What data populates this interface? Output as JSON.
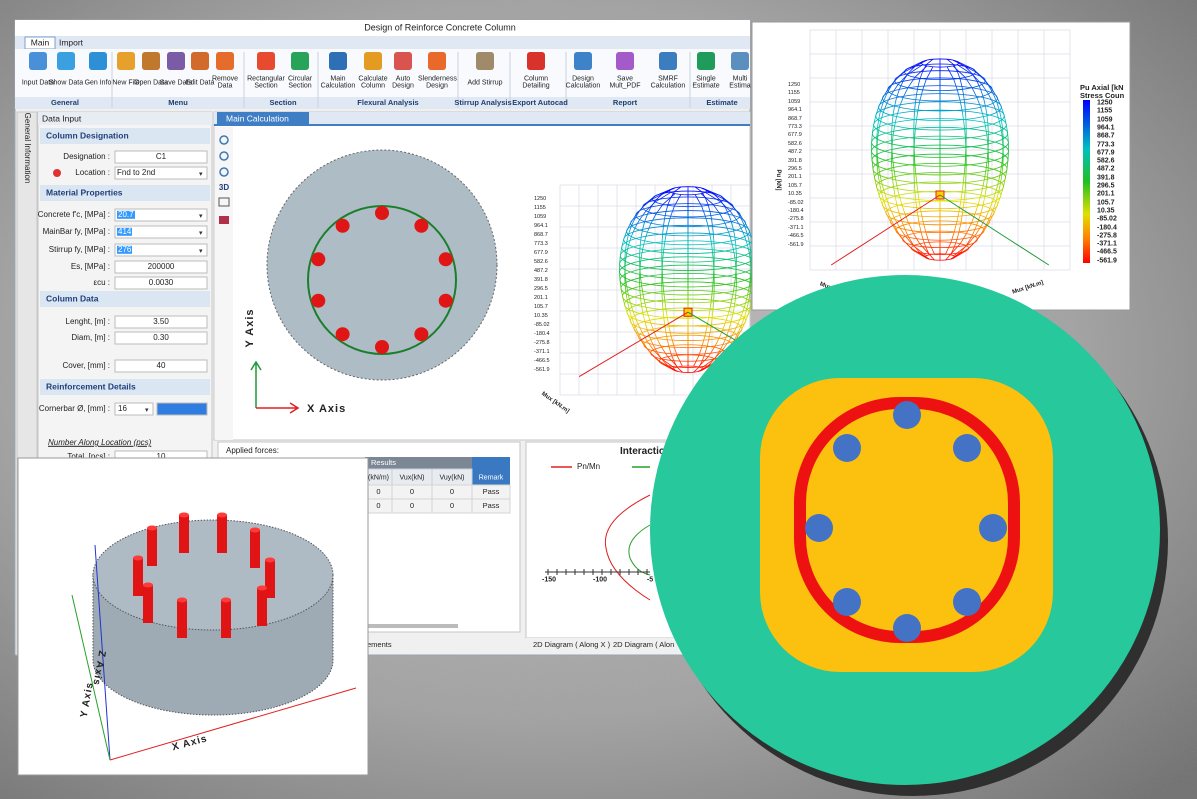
{
  "app": {
    "title": "Design of Reinforce Concrete Column",
    "tabs": [
      "Main",
      "Import"
    ],
    "ribbon": [
      {
        "group": "General",
        "buttons": [
          "Input Data",
          "Show Data",
          "Gen Info"
        ]
      },
      {
        "group": "Menu",
        "buttons": [
          "New File",
          "Open Data",
          "Save Data",
          "Edit Data",
          "Remove Data"
        ]
      },
      {
        "group": "Section",
        "buttons": [
          "Rectangular Section",
          "Circular Section"
        ]
      },
      {
        "group": "Flexural Analysis",
        "buttons": [
          "Main Calculation",
          "Calculate Column",
          "Auto Design",
          "Slenderness Design"
        ]
      },
      {
        "group": "Stirrup Analysis",
        "buttons": [
          "Add Stirrup"
        ]
      },
      {
        "group": "Export Autocad",
        "buttons": [
          "Column Detailing"
        ]
      },
      {
        "group": "Report",
        "buttons": [
          "Design Calculation",
          "Save Mult_PDF",
          "SMRF Calculation"
        ]
      },
      {
        "group": "Estimate",
        "buttons": [
          "Single Estimate",
          "Multi Estima"
        ]
      }
    ],
    "side_tab": "General Information",
    "panel": {
      "title": "Data Input",
      "sections": [
        {
          "header": "Column Designation",
          "fields": [
            {
              "label": "Designation :",
              "value": "C1"
            },
            {
              "label": "Location :",
              "value": "Fnd to 2nd"
            }
          ]
        },
        {
          "header": "Material Properties",
          "fields": [
            {
              "label": "Concrete f'c, [MPa] :",
              "value": "20.7"
            },
            {
              "label": "MainBar fy, [MPa] :",
              "value": "414"
            },
            {
              "label": "Stirrup fy, [MPa] :",
              "value": "276"
            },
            {
              "label": "Es, [MPa] :",
              "value": "200000"
            },
            {
              "label": "εcu :",
              "value": "0.0030"
            }
          ]
        },
        {
          "header": "Column Data",
          "fields": [
            {
              "label": "Lenght, [m] :",
              "value": "3.50"
            },
            {
              "label": "Diam, [m] :",
              "value": "0.30"
            },
            {
              "label": "Cover, [mm] :",
              "value": "40"
            }
          ]
        },
        {
          "header": "Reinforcement Details",
          "fields": [
            {
              "label": "Cornerbar Ø, [mm] :",
              "value": "16"
            }
          ],
          "subheading": "Number Along Location (pcs)",
          "more_fields": [
            {
              "label": "Total, [pcs] :",
              "value": "10"
            }
          ]
        }
      ]
    },
    "doc_tab": "Main Calculation",
    "toolbar_3d": "3D",
    "section_view": {
      "y_axis": "Y Axis",
      "x_axis": "X Axis"
    },
    "main_plot": {
      "ticks": [
        "1250",
        "1155",
        "1059",
        "964.1",
        "868.7",
        "773.3",
        "677.9",
        "582.6",
        "487.2",
        "391.8",
        "296.5",
        "201.1",
        "105.7",
        "10.35",
        "-85.02",
        "-180.4",
        "-275.8",
        "-371.1",
        "-466.5",
        "-561.9"
      ],
      "x_axis": "Mux [kN.m]"
    },
    "forces": {
      "title": "Applied forces:",
      "results_header": "Results",
      "columns": [
        "(kN/m)",
        "Vux(kN)",
        "Vuy(kN)",
        "Remark"
      ],
      "rows": [
        [
          "0",
          "0",
          "0",
          "Pass"
        ],
        [
          "0",
          "0",
          "0",
          "Pass"
        ]
      ],
      "bottom_tab": "ements"
    },
    "interaction": {
      "title": "Interaction",
      "legend": [
        "Pn/Mn"
      ],
      "ticks": [
        "-150",
        "-100",
        "-5"
      ],
      "tabs": [
        "2D Diagram ( Along X )",
        "2D Diagram ( Alon"
      ]
    }
  },
  "stress_plot": {
    "title": "Pu Axial [kN",
    "subtitle": "Stress Coun",
    "scale": [
      "1250",
      "1155",
      "1059",
      "964.1",
      "868.7",
      "773.3",
      "677.9",
      "582.6",
      "487.2",
      "391.8",
      "296.5",
      "201.1",
      "105.7",
      "10.35",
      "-85.02",
      "-180.4",
      "-275.8",
      "-371.1",
      "-466.5",
      "-561.9"
    ],
    "y_axis": "Pu [kN]",
    "x_axis": "Mux [kN.m]",
    "x2_axis": "Muy [kN.m]"
  },
  "column_3d": {
    "x_axis": "X Axis",
    "y_axis": "Y Axis",
    "z_axis": "Z Axis"
  }
}
